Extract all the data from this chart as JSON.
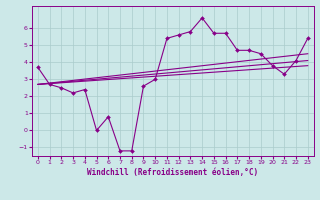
{
  "xlabel": "Windchill (Refroidissement éolien,°C)",
  "bg_color": "#cce8e8",
  "grid_color": "#aacccc",
  "line_color": "#880088",
  "xlim": [
    -0.5,
    23.5
  ],
  "ylim": [
    -1.5,
    7.3
  ],
  "xticks": [
    0,
    1,
    2,
    3,
    4,
    5,
    6,
    7,
    8,
    9,
    10,
    11,
    12,
    13,
    14,
    15,
    16,
    17,
    18,
    19,
    20,
    21,
    22,
    23
  ],
  "yticks": [
    -1,
    0,
    1,
    2,
    3,
    4,
    5,
    6
  ],
  "line1_x": [
    0,
    1,
    2,
    3,
    4,
    5,
    6,
    7,
    8,
    9,
    10,
    11,
    12,
    13,
    14,
    15,
    16,
    17,
    18,
    19,
    20,
    21,
    22,
    23
  ],
  "line1_y": [
    3.7,
    2.7,
    2.5,
    2.2,
    2.4,
    0.0,
    0.8,
    -1.2,
    -1.2,
    2.6,
    3.0,
    5.4,
    5.6,
    5.8,
    6.6,
    5.7,
    5.7,
    4.7,
    4.7,
    4.5,
    3.8,
    3.3,
    4.1,
    5.4
  ],
  "line2_x": [
    0,
    23
  ],
  "line2_y": [
    2.7,
    3.8
  ],
  "line3_x": [
    0,
    23
  ],
  "line3_y": [
    2.7,
    4.1
  ],
  "line4_x": [
    0,
    23
  ],
  "line4_y": [
    2.7,
    4.5
  ]
}
